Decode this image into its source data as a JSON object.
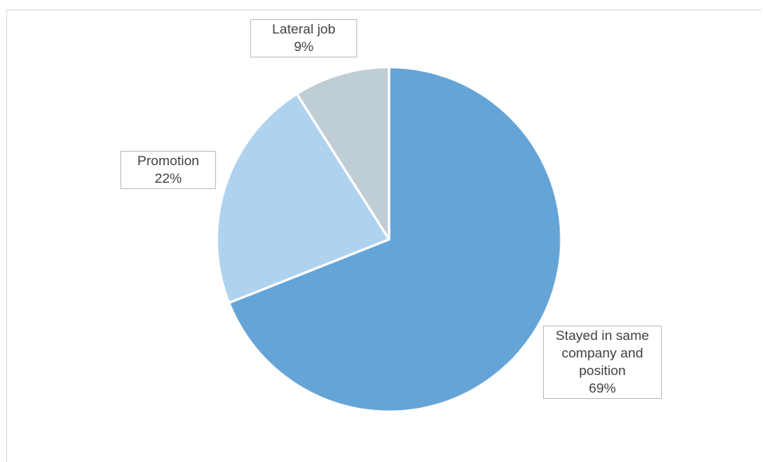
{
  "chart_data": {
    "type": "pie",
    "title": "",
    "start_angle_deg": 0,
    "direction": "clockwise",
    "slices": [
      {
        "name": "Stayed in same company and position",
        "value": 69,
        "label_lines": [
          "Stayed in same",
          "company and",
          "position"
        ],
        "percent_label": "69%",
        "color": "#65a4d7"
      },
      {
        "name": "Promotion",
        "value": 22,
        "label_lines": [
          "Promotion"
        ],
        "percent_label": "22%",
        "color": "#afd2ef"
      },
      {
        "name": "Lateral job",
        "value": 9,
        "label_lines": [
          "Lateral job"
        ],
        "percent_label": "9%",
        "color": "#bfcdd4"
      }
    ],
    "slice_border_color": "#ffffff",
    "legend": "none"
  }
}
